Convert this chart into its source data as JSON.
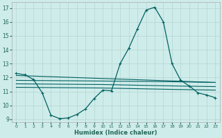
{
  "xlabel": "Humidex (Indice chaleur)",
  "bg_color": "#ceecea",
  "grid_color": "#b8d8d5",
  "line_color": "#006060",
  "xlim": [
    -0.5,
    23.5
  ],
  "ylim": [
    8.8,
    17.4
  ],
  "yticks": [
    9,
    10,
    11,
    12,
    13,
    14,
    15,
    16,
    17
  ],
  "xticks": [
    0,
    1,
    2,
    3,
    4,
    5,
    6,
    7,
    8,
    9,
    10,
    11,
    12,
    13,
    14,
    15,
    16,
    17,
    18,
    19,
    20,
    21,
    22,
    23
  ],
  "curve1_x": [
    0,
    1,
    2,
    3,
    4,
    5,
    6,
    7,
    8,
    9,
    10,
    11,
    12,
    13,
    14,
    15,
    16,
    17,
    18,
    19,
    20,
    21,
    22,
    23
  ],
  "curve1_y": [
    12.3,
    12.2,
    11.85,
    10.9,
    9.3,
    9.05,
    9.1,
    9.35,
    9.75,
    10.5,
    11.1,
    11.05,
    13.0,
    14.1,
    15.5,
    16.85,
    17.05,
    16.0,
    13.0,
    11.8,
    11.4,
    10.9,
    10.75,
    10.55
  ],
  "line2_x": [
    0,
    23
  ],
  "line2_y": [
    12.15,
    11.65
  ],
  "line3_x": [
    0,
    10,
    18,
    23
  ],
  "line3_y": [
    11.8,
    11.75,
    11.7,
    11.65
  ],
  "line4_x": [
    0,
    10,
    18,
    23
  ],
  "line4_y": [
    11.55,
    11.5,
    11.4,
    11.35
  ],
  "line5_x": [
    0,
    10,
    18,
    23
  ],
  "line5_y": [
    11.3,
    11.25,
    11.15,
    11.1
  ]
}
